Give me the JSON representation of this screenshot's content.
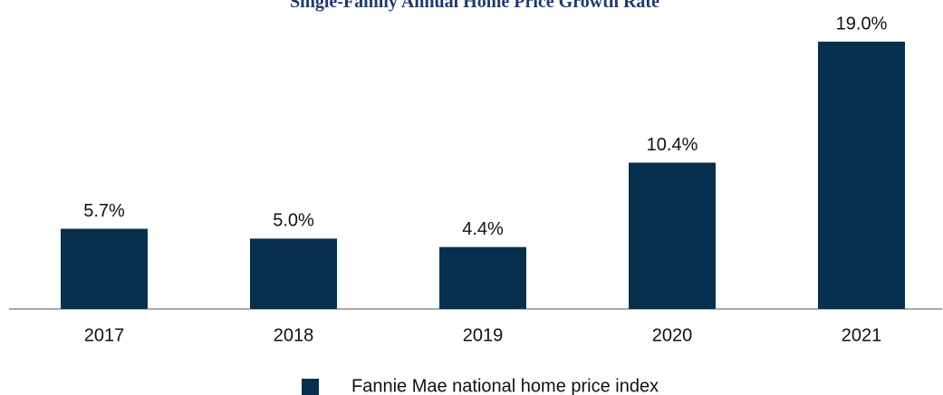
{
  "chart_data": {
    "type": "bar",
    "title": "Single-Family Annual Home Price Growth Rate",
    "categories": [
      "2017",
      "2018",
      "2019",
      "2020",
      "2021"
    ],
    "series": [
      {
        "name": "Fannie Mae national home price index",
        "color": "#06304d",
        "values": [
          5.7,
          5.0,
          4.4,
          10.4,
          19.0
        ],
        "value_labels": [
          "5.7%",
          "5.0%",
          "4.4%",
          "10.4%",
          "19.0%"
        ]
      }
    ],
    "ylim": [
      0,
      19
    ]
  }
}
